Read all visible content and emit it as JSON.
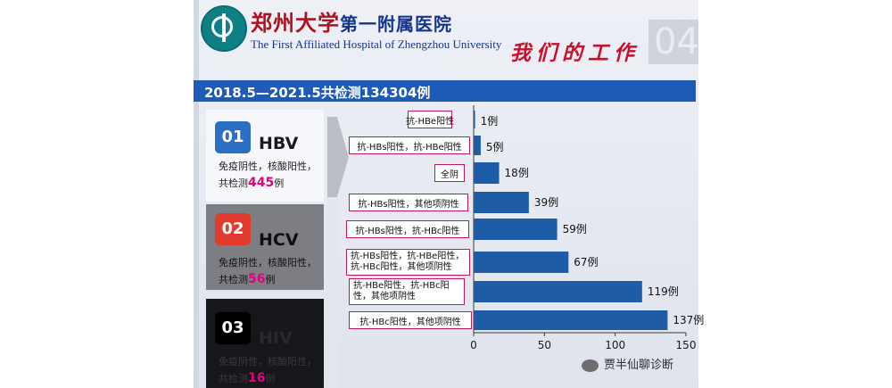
{
  "header": {
    "hospital_cn_bold": "郑州大学",
    "hospital_cn_rest": "第一附属医院",
    "hospital_en": "The First Affiliated Hospital of Zhengzhou University",
    "section_title": "我们的工作",
    "page_number": "04"
  },
  "banner": "2018.5—2021.5共检测134304例",
  "blocks": [
    {
      "num": "01",
      "virus": "HBV",
      "desc_line1": "免疫阴性，核酸阳性，",
      "desc_prefix": "共检测",
      "count": "445",
      "desc_suffix": "例"
    },
    {
      "num": "02",
      "virus": "HCV",
      "desc_line1": "免疫阴性，核酸阳性，",
      "desc_prefix": "共检测",
      "count": "56",
      "desc_suffix": "例"
    },
    {
      "num": "03",
      "virus": "HIV",
      "desc_line1": "免疫阴性，核酸阳性，",
      "desc_prefix": "共检测",
      "count": "16",
      "desc_suffix": "例"
    }
  ],
  "chart_data": {
    "type": "bar",
    "orientation": "horizontal",
    "categories": [
      "抗-HBe阳性",
      "抗-HBs阳性，抗-HBe阳性",
      "全阴",
      "抗-HBs阳性，其他项阴性",
      "抗-HBs阳性，抗-HBc阳性",
      "抗-HBs阳性，抗-HBe阳性，抗-HBc阳性，其他项阴性",
      "抗-HBe阳性，抗-HBc阳性，其他项阴性",
      "抗-HBc阳性，其他项阴性"
    ],
    "values": [
      1,
      5,
      18,
      39,
      59,
      67,
      119,
      137
    ],
    "data_labels": [
      "1例",
      "5例",
      "18例",
      "39例",
      "59例",
      "67例",
      "119例",
      "137例"
    ],
    "xlim": [
      0,
      150
    ],
    "x_ticks": [
      "0",
      "50",
      "100",
      "150"
    ],
    "bar_color": "#1f5ca8",
    "label_border_color": "#c2185b"
  },
  "watermark": "贾半仙聊诊断"
}
